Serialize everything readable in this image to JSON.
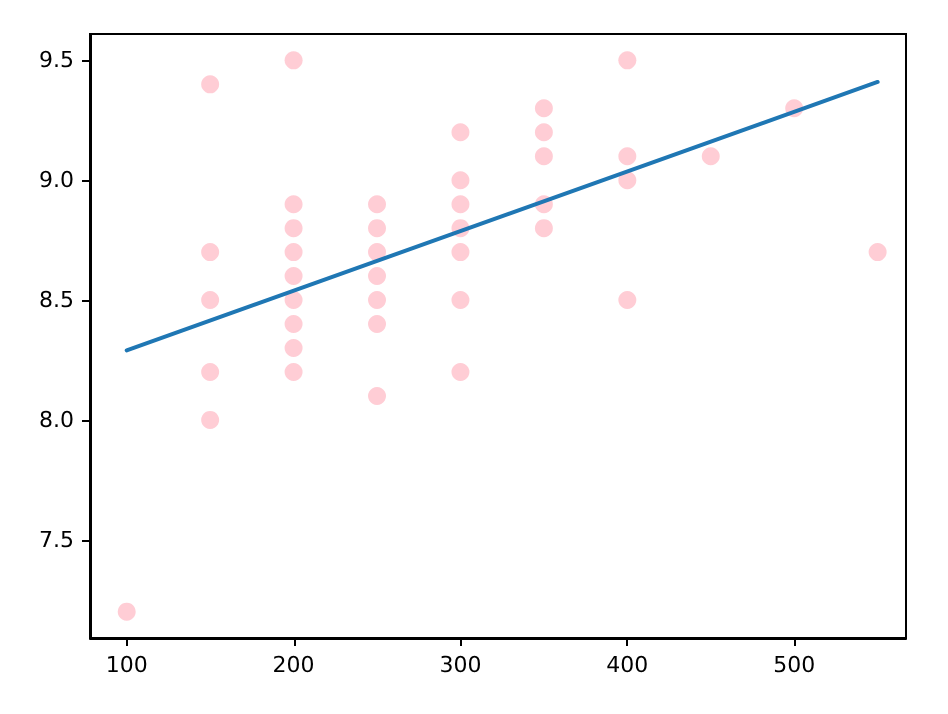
{
  "chart_data": {
    "type": "scatter",
    "xlim": [
      78,
      567
    ],
    "ylim": [
      7.09,
      9.61
    ],
    "xticks": [
      100,
      200,
      300,
      400,
      500
    ],
    "yticks": [
      {
        "value": 7.5,
        "label": "7.5"
      },
      {
        "value": 8,
        "label": "8.0"
      },
      {
        "value": 8.5,
        "label": "8.5"
      },
      {
        "value": 9,
        "label": "9.0"
      },
      {
        "value": 9.5,
        "label": "9.5"
      }
    ],
    "grid": false,
    "series": [
      {
        "marker": "circle",
        "color": "#ffc0cb",
        "x": [
          100,
          150,
          150,
          150,
          150,
          150,
          200,
          200,
          200,
          200,
          200,
          200,
          200,
          200,
          200,
          250,
          250,
          250,
          250,
          250,
          250,
          250,
          300,
          300,
          300,
          300,
          300,
          300,
          300,
          350,
          350,
          350,
          350,
          350,
          400,
          400,
          400,
          400,
          450,
          500,
          550
        ],
        "values": [
          7.2,
          9.4,
          8.7,
          8.5,
          8.2,
          8.0,
          9.5,
          8.9,
          8.8,
          8.7,
          8.6,
          8.5,
          8.4,
          8.3,
          8.2,
          8.9,
          8.8,
          8.7,
          8.6,
          8.5,
          8.4,
          8.1,
          9.2,
          9.0,
          8.9,
          8.8,
          8.7,
          8.5,
          8.2,
          9.3,
          9.2,
          9.1,
          8.9,
          8.8,
          9.5,
          9.1,
          9.0,
          8.5,
          9.1,
          9.3,
          8.7
        ]
      },
      {
        "type": "line",
        "color": "#1f77b4",
        "x": [
          100,
          550
        ],
        "values": [
          8.29,
          9.41
        ],
        "line_style": "solid"
      }
    ]
  }
}
